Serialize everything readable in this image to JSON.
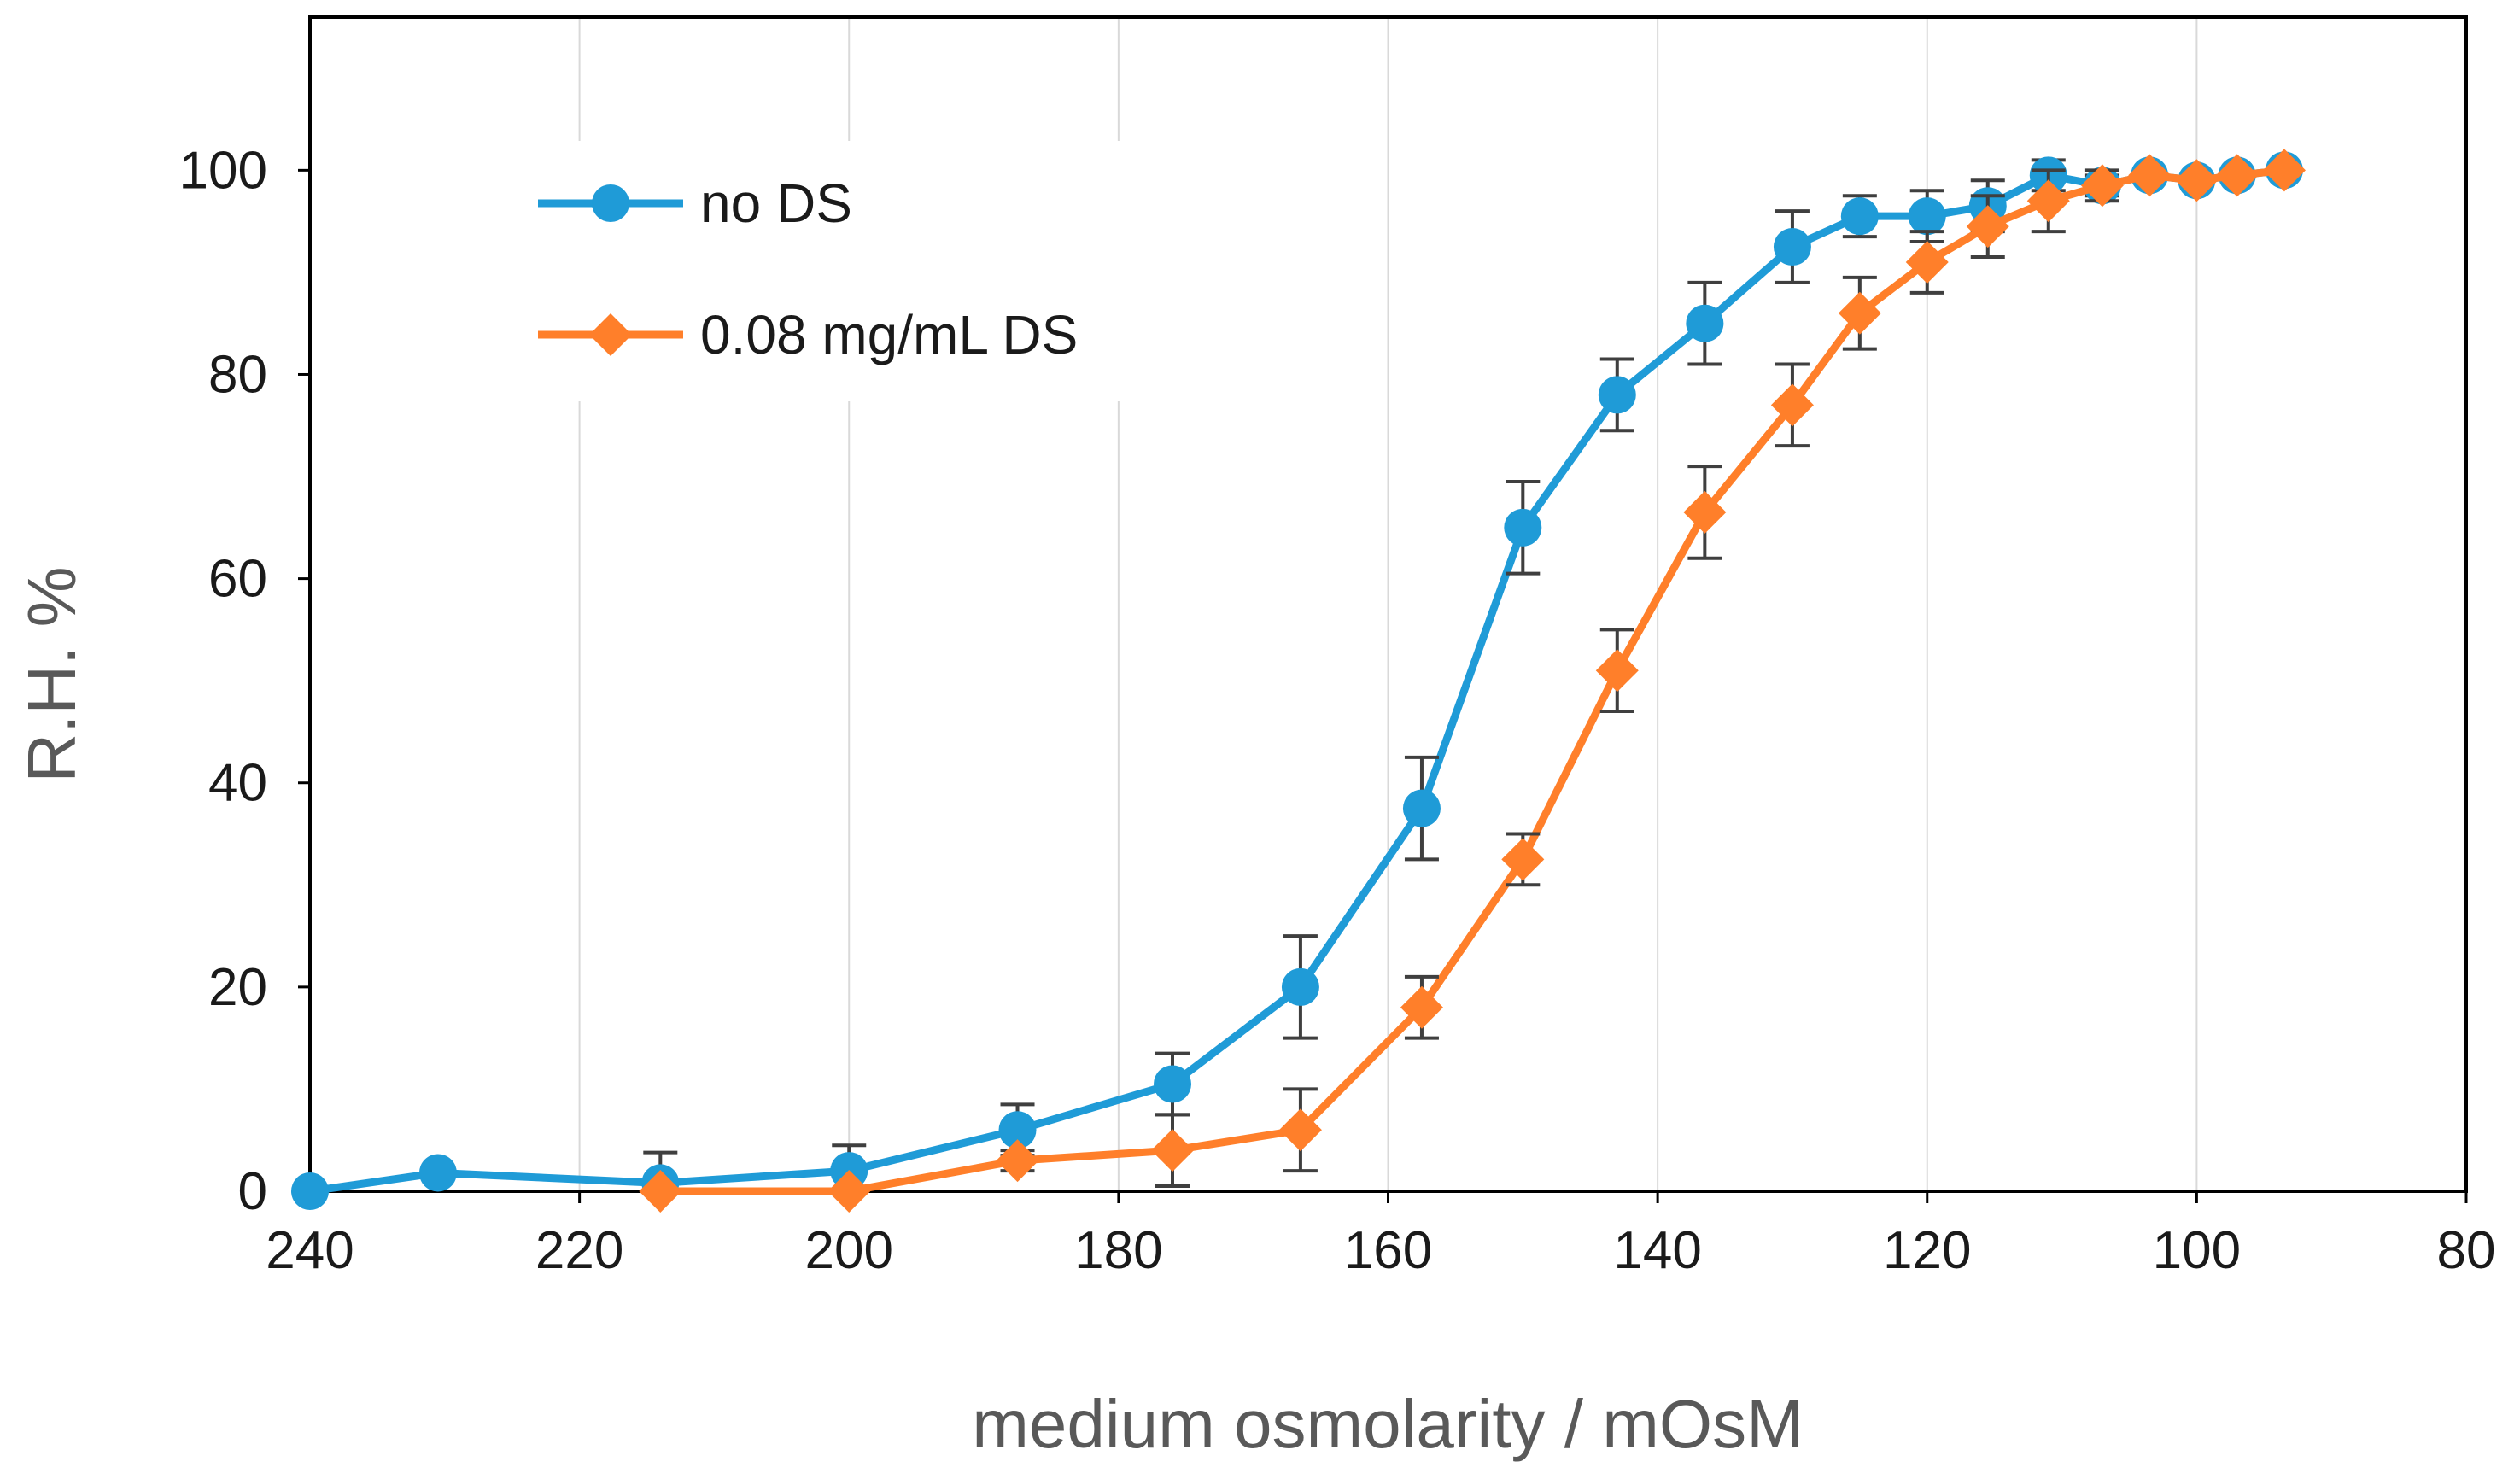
{
  "chart_data": {
    "type": "line",
    "title": "",
    "xlabel": "medium osmolarity / mOsM",
    "ylabel": "R.H.  %",
    "xlim": [
      240,
      80
    ],
    "ylim": [
      0,
      115
    ],
    "x_reversed": true,
    "grid": "vertical",
    "x_ticks": [
      "240",
      "220",
      "200",
      "180",
      "160",
      "140",
      "120",
      "100",
      "80"
    ],
    "y_ticks": [
      "0",
      "20",
      "40",
      "60",
      "80",
      "100"
    ],
    "legend_position": "top-left",
    "series": [
      {
        "name": "no DS",
        "color": "#1F9BD7",
        "marker": "circle",
        "x": [
          240,
          230.5,
          214,
          200,
          187.5,
          176,
          166.5,
          157.5,
          150,
          143,
          136.5,
          130,
          125,
          120,
          115.5,
          111,
          107,
          103.5,
          100,
          97,
          93.5
        ],
        "y": [
          0,
          1.8,
          0.8,
          2,
          6,
          10.5,
          20,
          37.5,
          65,
          78,
          85,
          92.5,
          95.5,
          95.5,
          96.5,
          99.5,
          98.5,
          99.5,
          99,
          99.5,
          100
        ],
        "error": [
          0,
          0,
          3,
          2.5,
          2.5,
          3,
          5,
          5,
          4.5,
          3.5,
          4,
          3.5,
          2,
          2.5,
          2.5,
          1.5,
          1,
          0.5,
          0.5,
          0.5,
          0.3
        ]
      },
      {
        "name": "0.08 mg/mL DS",
        "color": "#FF7F2A",
        "marker": "diamond",
        "x": [
          214,
          200,
          187.5,
          176,
          166.5,
          157.5,
          150,
          143,
          136.5,
          130,
          125,
          120,
          115.5,
          111,
          107,
          103.5,
          100,
          97,
          93.5
        ],
        "y": [
          0,
          0,
          3,
          4,
          6,
          18,
          32.5,
          51,
          66.5,
          77,
          86,
          91,
          94.5,
          97,
          98.5,
          99.5,
          99,
          99.5,
          100
        ],
        "error": [
          0,
          0,
          1,
          3.5,
          4,
          3,
          2.5,
          4,
          4.5,
          4,
          3.5,
          3,
          3,
          3,
          1.5,
          0.5,
          0.5,
          0.3,
          0.3
        ]
      }
    ]
  }
}
